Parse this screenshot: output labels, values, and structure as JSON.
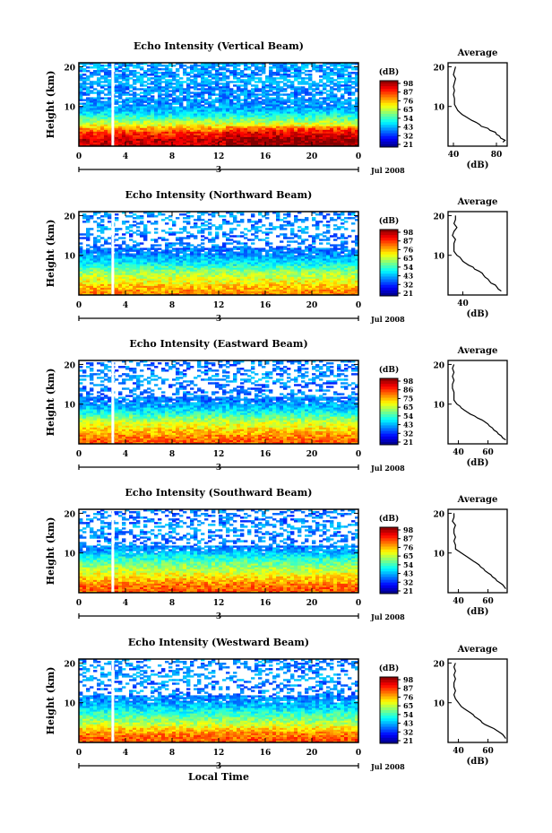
{
  "chart_data": [
    {
      "type": "heatmap",
      "title": "Echo Intensity (Vertical Beam)",
      "ylabel": "Height (km)",
      "xticks": [
        "0",
        "4",
        "8",
        "12",
        "16",
        "20",
        "0"
      ],
      "yticks": [
        "10",
        "20"
      ],
      "date_label": "Jul 2008",
      "day_label": "3",
      "colorbar": {
        "label": "(dB)",
        "ticks": [
          "98",
          "87",
          "76",
          "65",
          "54",
          "43",
          "32",
          "21"
        ]
      },
      "average": {
        "title": "Average",
        "xlabel": "(dB)",
        "xticks": [
          "40",
          "80"
        ],
        "yticks": [
          "10",
          "20"
        ],
        "xlim": [
          35,
          90
        ],
        "profile": [
          [
            86,
            1
          ],
          [
            88,
            1.5
          ],
          [
            84,
            2
          ],
          [
            83,
            2.5
          ],
          [
            80,
            3
          ],
          [
            79,
            3.5
          ],
          [
            74,
            4
          ],
          [
            72,
            4.5
          ],
          [
            66,
            5
          ],
          [
            64,
            5.5
          ],
          [
            61,
            6
          ],
          [
            57,
            6.5
          ],
          [
            54,
            7
          ],
          [
            51,
            7.5
          ],
          [
            48,
            8
          ],
          [
            46,
            8.5
          ],
          [
            44,
            9
          ],
          [
            43,
            9.5
          ],
          [
            42,
            10
          ],
          [
            41,
            10.5
          ],
          [
            41,
            11
          ],
          [
            41,
            12
          ],
          [
            40,
            13
          ],
          [
            41,
            14
          ],
          [
            40,
            15
          ],
          [
            41,
            16
          ],
          [
            42,
            17
          ],
          [
            40,
            18
          ],
          [
            41,
            19
          ],
          [
            42,
            20
          ]
        ]
      }
    },
    {
      "type": "heatmap",
      "title": "Echo Intensity (Northward Beam)",
      "ylabel": "Height (km)",
      "xticks": [
        "0",
        "4",
        "8",
        "12",
        "16",
        "20",
        "0"
      ],
      "yticks": [
        "10",
        "20"
      ],
      "date_label": "Jul 2008",
      "day_label": "3",
      "colorbar": {
        "label": "(dB)",
        "ticks": [
          "98",
          "87",
          "76",
          "65",
          "54",
          "43",
          "32",
          "21"
        ]
      },
      "average": {
        "title": "Average",
        "xlabel": "(dB)",
        "xticks": [
          "40"
        ],
        "yticks": [
          "10",
          "20"
        ],
        "xlim": [
          30,
          70
        ],
        "profile": [
          [
            66,
            1
          ],
          [
            64,
            1.5
          ],
          [
            63,
            2
          ],
          [
            62,
            2.5
          ],
          [
            59,
            3
          ],
          [
            58,
            3.5
          ],
          [
            57,
            4
          ],
          [
            55,
            4.5
          ],
          [
            54,
            5
          ],
          [
            53,
            5.5
          ],
          [
            51,
            6
          ],
          [
            48,
            6.5
          ],
          [
            47,
            7
          ],
          [
            44,
            7.5
          ],
          [
            42,
            8
          ],
          [
            40,
            8.5
          ],
          [
            39,
            9
          ],
          [
            38,
            9.5
          ],
          [
            36,
            10
          ],
          [
            35,
            10.5
          ],
          [
            34,
            11
          ],
          [
            34,
            12
          ],
          [
            34,
            13
          ],
          [
            35,
            14
          ],
          [
            33,
            15
          ],
          [
            34,
            16
          ],
          [
            36,
            17
          ],
          [
            34,
            18
          ],
          [
            35,
            19
          ],
          [
            35,
            20
          ]
        ]
      }
    },
    {
      "type": "heatmap",
      "title": "Echo Intensity (Eastward Beam)",
      "ylabel": "Height (km)",
      "xticks": [
        "0",
        "4",
        "8",
        "12",
        "16",
        "20",
        "0"
      ],
      "yticks": [
        "10",
        "20"
      ],
      "date_label": "Jul 2008",
      "day_label": "3",
      "colorbar": {
        "label": "(dB)",
        "ticks": [
          "98",
          "86",
          "75",
          "65",
          "54",
          "43",
          "32",
          "21"
        ]
      },
      "average": {
        "title": "Average",
        "xlabel": "(dB)",
        "xticks": [
          "40",
          "60"
        ],
        "yticks": [
          "10",
          "20"
        ],
        "xlim": [
          33,
          73
        ],
        "profile": [
          [
            72,
            1
          ],
          [
            70,
            1.5
          ],
          [
            69,
            2
          ],
          [
            67,
            2.5
          ],
          [
            66,
            3
          ],
          [
            64,
            3.5
          ],
          [
            63,
            4
          ],
          [
            61,
            4.5
          ],
          [
            60,
            5
          ],
          [
            58,
            5.5
          ],
          [
            56,
            6
          ],
          [
            53,
            6.5
          ],
          [
            51,
            7
          ],
          [
            48,
            7.5
          ],
          [
            46,
            8
          ],
          [
            44,
            8.5
          ],
          [
            42,
            9
          ],
          [
            41,
            9.5
          ],
          [
            39,
            10
          ],
          [
            38,
            10.5
          ],
          [
            37,
            11
          ],
          [
            37,
            12
          ],
          [
            37,
            13
          ],
          [
            36,
            14
          ],
          [
            36,
            15
          ],
          [
            37,
            16
          ],
          [
            36,
            17
          ],
          [
            37,
            18
          ],
          [
            36,
            19
          ],
          [
            37,
            20
          ]
        ]
      }
    },
    {
      "type": "heatmap",
      "title": "Echo Intensity (Southward Beam)",
      "ylabel": "Height (km)",
      "xticks": [
        "0",
        "4",
        "8",
        "12",
        "16",
        "20",
        "0"
      ],
      "yticks": [
        "10",
        "20"
      ],
      "date_label": "Jul 2008",
      "day_label": "3",
      "colorbar": {
        "label": "(dB)",
        "ticks": [
          "98",
          "87",
          "76",
          "65",
          "54",
          "43",
          "32",
          "21"
        ]
      },
      "average": {
        "title": "Average",
        "xlabel": "(dB)",
        "xticks": [
          "40",
          "60"
        ],
        "yticks": [
          "10",
          "20"
        ],
        "xlim": [
          33,
          73
        ],
        "profile": [
          [
            72,
            1
          ],
          [
            71,
            1.5
          ],
          [
            70,
            2
          ],
          [
            68,
            2.5
          ],
          [
            66,
            3
          ],
          [
            65,
            3.5
          ],
          [
            63,
            4
          ],
          [
            62,
            4.5
          ],
          [
            60,
            5
          ],
          [
            58,
            5.5
          ],
          [
            57,
            6
          ],
          [
            55,
            6.5
          ],
          [
            54,
            7
          ],
          [
            52,
            7.5
          ],
          [
            50,
            8
          ],
          [
            48,
            8.5
          ],
          [
            46,
            9
          ],
          [
            44,
            9.5
          ],
          [
            42,
            10
          ],
          [
            40,
            10.5
          ],
          [
            38,
            11
          ],
          [
            38,
            12
          ],
          [
            37,
            13
          ],
          [
            38,
            14
          ],
          [
            37,
            15
          ],
          [
            37,
            16
          ],
          [
            38,
            17
          ],
          [
            36,
            18
          ],
          [
            37,
            19
          ],
          [
            37,
            20
          ]
        ]
      }
    },
    {
      "type": "heatmap",
      "title": "Echo Intensity (Westward Beam)",
      "ylabel": "Height (km)",
      "xlabel": "Local Time",
      "xticks": [
        "0",
        "4",
        "8",
        "12",
        "16",
        "20",
        "0"
      ],
      "yticks": [
        "10",
        "20"
      ],
      "date_label": "Jul 2008",
      "day_label": "3",
      "colorbar": {
        "label": "(dB)",
        "ticks": [
          "98",
          "87",
          "76",
          "65",
          "54",
          "43",
          "32",
          "21"
        ]
      },
      "average": {
        "title": "Average",
        "xlabel": "(dB)",
        "xticks": [
          "40",
          "60"
        ],
        "yticks": [
          "10",
          "20"
        ],
        "xlim": [
          33,
          73
        ],
        "profile": [
          [
            72,
            1
          ],
          [
            71,
            1.5
          ],
          [
            70,
            2
          ],
          [
            68,
            2.5
          ],
          [
            66,
            3
          ],
          [
            64,
            3.5
          ],
          [
            61,
            4
          ],
          [
            58,
            4.5
          ],
          [
            56,
            5
          ],
          [
            55,
            5.5
          ],
          [
            53,
            6
          ],
          [
            51,
            6.5
          ],
          [
            50,
            7
          ],
          [
            48,
            7.5
          ],
          [
            46,
            8
          ],
          [
            44,
            8.5
          ],
          [
            42,
            9
          ],
          [
            41,
            9.5
          ],
          [
            40,
            10
          ],
          [
            39,
            10.5
          ],
          [
            38,
            11
          ],
          [
            37,
            12
          ],
          [
            38,
            13
          ],
          [
            37,
            14
          ],
          [
            37,
            15
          ],
          [
            38,
            16
          ],
          [
            37,
            17
          ],
          [
            38,
            18
          ],
          [
            37,
            19
          ],
          [
            38,
            20
          ]
        ]
      }
    }
  ]
}
